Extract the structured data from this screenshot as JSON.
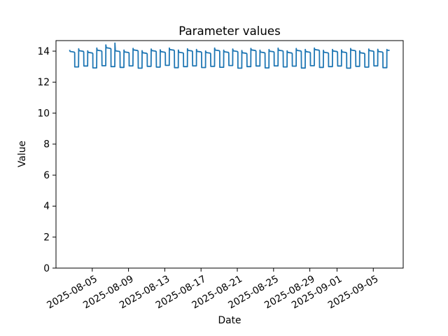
{
  "figure": {
    "background": "#ffffff"
  },
  "chart_data": {
    "type": "line",
    "title": "Parameter values",
    "xlabel": "Date",
    "ylabel": "Value",
    "grid": false,
    "legend": null,
    "x_epoch": "2025-08-01",
    "x_span_days": 38.3,
    "ylim": [
      0,
      14.68
    ],
    "yticks": [
      0,
      2,
      4,
      6,
      8,
      10,
      12,
      14
    ],
    "xticks": [
      "2025-08-05",
      "2025-08-09",
      "2025-08-13",
      "2025-08-17",
      "2025-08-21",
      "2025-08-25",
      "2025-08-29",
      "2025-09-01",
      "2025-09-05"
    ],
    "series": [
      {
        "name": "parameter-values",
        "color": "#1f77b4",
        "start": "2025-08-02T12:00:00",
        "period_days": 1,
        "cycles": 36,
        "description": "Square-wave daily cycle: high plateau ~14 for ~0.56 of each day with a small leading overshoot notch, then low plateau ~13 for the rest; one anomalous spike to ~14.5 on 2025-08-07.",
        "day_highs": [
          13.98,
          14.03,
          13.92,
          14.06,
          14.22,
          14.02,
          13.95,
          14.08,
          13.9,
          14.04,
          13.97,
          14.1,
          13.93,
          14.05,
          13.99,
          13.91,
          14.07,
          13.96,
          14.02,
          13.9,
          14.08,
          13.94,
          14.0,
          14.06,
          13.92,
          14.05,
          13.97,
          14.1,
          13.93,
          14.01,
          13.95,
          14.07,
          13.9,
          14.04,
          13.98,
          14.05
        ],
        "day_lows": [
          12.98,
          13.04,
          12.92,
          13.06,
          13.0,
          12.95,
          13.05,
          12.9,
          13.02,
          12.97,
          13.08,
          12.93,
          13.0,
          13.05,
          12.94,
          13.02,
          12.96,
          13.07,
          12.9,
          13.0,
          13.04,
          12.92,
          13.05,
          12.98,
          13.03,
          12.91,
          13.06,
          12.95,
          13.0,
          13.04,
          12.9,
          13.02,
          12.97,
          13.05,
          12.93,
          13.0
        ],
        "day_overshoots": [
          0.1,
          0.12,
          0.1,
          0.14,
          0.18,
          0.5,
          0.12,
          0.1,
          0.13,
          0.1,
          0.12,
          0.1,
          0.14,
          0.1,
          0.12,
          0.1,
          0.13,
          0.1,
          0.12,
          0.14,
          0.1,
          0.12,
          0.1,
          0.13,
          0.1,
          0.12,
          0.14,
          0.1,
          0.12,
          0.1,
          0.13,
          0.1,
          0.12,
          0.1,
          0.14,
          0.12
        ],
        "pattern": {
          "overshoot_end_frac": 0.05,
          "high_mid_frac": 0.5,
          "high_end_frac": 0.56,
          "fall_end_frac": 0.57,
          "low_end_frac": 0.99,
          "high_droop": 0.08,
          "final_partial_frac": 0.3
        }
      }
    ]
  }
}
